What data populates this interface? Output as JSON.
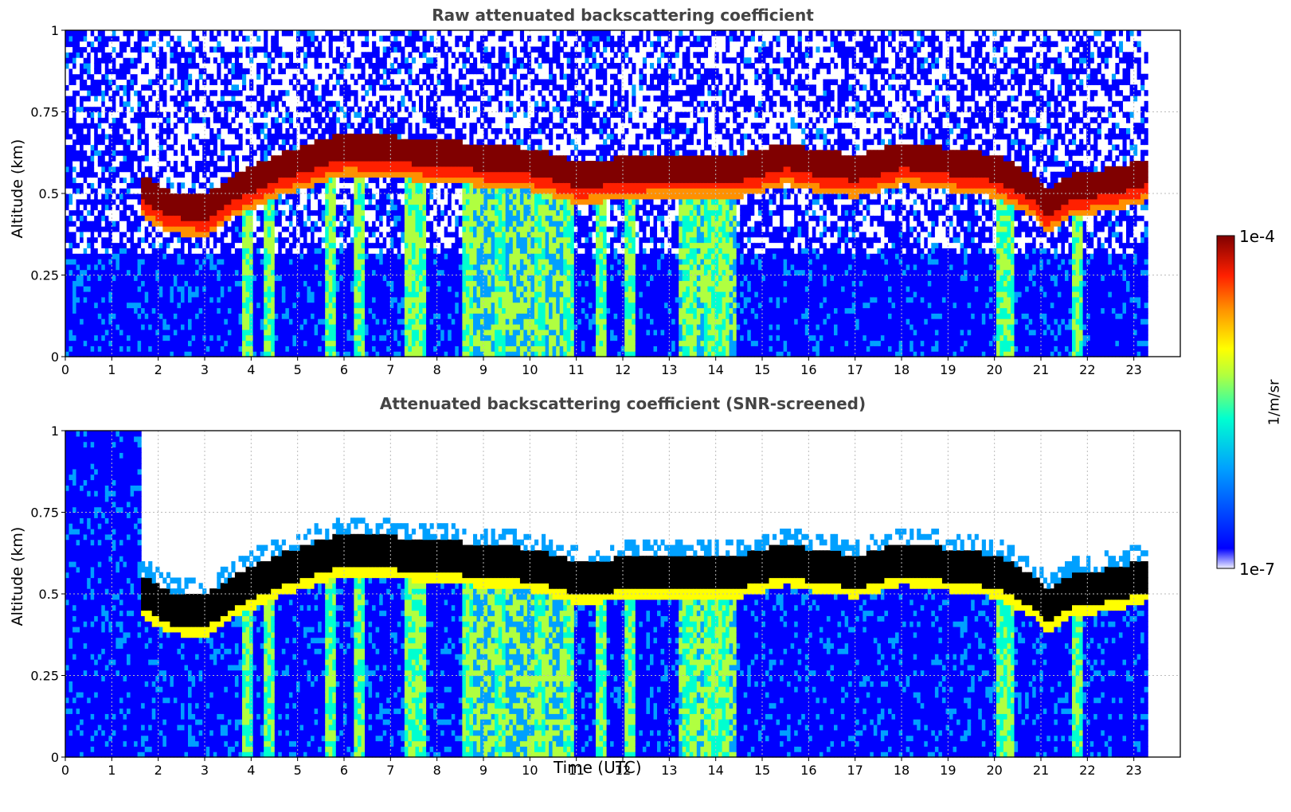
{
  "chart_data": [
    {
      "type": "heatmap",
      "title": "Raw attenuated backscattering coefficient",
      "xlabel": "",
      "ylabel": "Altitude (km)",
      "xlim": [
        0,
        24
      ],
      "ylim": [
        0,
        1
      ],
      "x_ticks": [
        "0",
        "1",
        "2",
        "3",
        "4",
        "5",
        "6",
        "7",
        "8",
        "9",
        "10",
        "11",
        "12",
        "13",
        "14",
        "15",
        "16",
        "17",
        "18",
        "19",
        "20",
        "21",
        "22",
        "23"
      ],
      "y_ticks": [
        "0",
        "0.25",
        "0.5",
        "0.75",
        "1"
      ],
      "data_end_hour": 23.3,
      "cloud_base_km": [
        [
          1.6,
          0.42
        ],
        [
          2.2,
          0.37
        ],
        [
          3.0,
          0.36
        ],
        [
          3.6,
          0.42
        ],
        [
          4.5,
          0.48
        ],
        [
          6.0,
          0.55
        ],
        [
          8.5,
          0.52
        ],
        [
          10.0,
          0.5
        ],
        [
          11.0,
          0.46
        ],
        [
          12.5,
          0.48
        ],
        [
          14.5,
          0.48
        ],
        [
          15.5,
          0.52
        ],
        [
          16.0,
          0.5
        ],
        [
          17.0,
          0.48
        ],
        [
          18.0,
          0.52
        ],
        [
          19.0,
          0.5
        ],
        [
          20.0,
          0.48
        ],
        [
          20.8,
          0.42
        ],
        [
          21.1,
          0.37
        ],
        [
          21.6,
          0.42
        ],
        [
          22.5,
          0.44
        ],
        [
          23.3,
          0.47
        ]
      ],
      "precip_columns_hours": [
        3.85,
        4.35,
        5.7,
        6.3,
        7.4,
        7.6,
        8.6,
        9.3,
        10.2,
        10.8,
        11.5,
        12.1,
        13.4,
        13.8,
        14.1,
        20.1,
        20.3,
        21.75
      ],
      "grid": true
    },
    {
      "type": "heatmap",
      "title": "Attenuated backscattering coefficient (SNR-screened)",
      "xlabel": "Time (UTC)",
      "ylabel": "Altitude (km)",
      "xlim": [
        0,
        24
      ],
      "ylim": [
        0,
        1
      ],
      "x_ticks": [
        "0",
        "1",
        "2",
        "3",
        "4",
        "5",
        "6",
        "7",
        "8",
        "9",
        "10",
        "11",
        "12",
        "13",
        "14",
        "15",
        "16",
        "17",
        "18",
        "19",
        "20",
        "21",
        "22",
        "23"
      ],
      "y_ticks": [
        "0",
        "0.25",
        "0.5",
        "0.75",
        "1"
      ],
      "grid": true
    }
  ],
  "colorbar": {
    "max_label": "1e-4",
    "min_label": "1e-7",
    "unit": "1/m/sr",
    "colors": [
      "#f0f0ff",
      "#0000ff",
      "#00a0ff",
      "#00ffd0",
      "#b0ff40",
      "#ffff00",
      "#ff9000",
      "#ff2000",
      "#800000"
    ]
  }
}
